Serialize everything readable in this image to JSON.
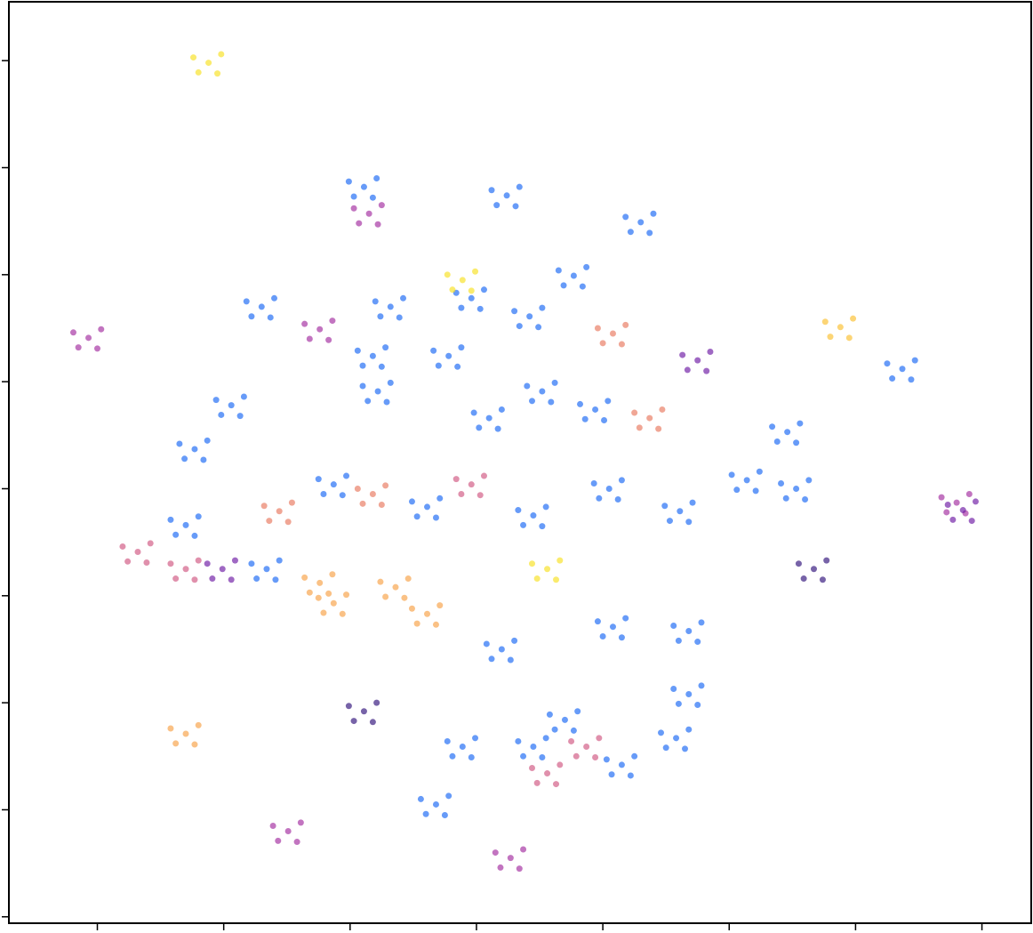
{
  "chart_data": {
    "type": "scatter",
    "xlim": [
      -0.7,
      7.39
    ],
    "ylim": [
      -0.06,
      8.55
    ],
    "xticks": [
      0,
      1,
      2,
      3,
      4,
      5,
      6,
      7
    ],
    "yticks": [
      0,
      1,
      2,
      3,
      4,
      5,
      6,
      7,
      8
    ],
    "grid": false,
    "series": [
      {
        "color": "#1565f5",
        "x": [
          2.11,
          2.21,
          1.99,
          2.18,
          2.03,
          3.24,
          3.34,
          3.12,
          3.31,
          3.16,
          4.3,
          4.4,
          4.18,
          4.37,
          4.22,
          3.77,
          3.87,
          3.65,
          3.84,
          3.69,
          1.3,
          1.4,
          1.18,
          1.37,
          1.22,
          2.18,
          2.28,
          2.06,
          2.25,
          2.1,
          2.22,
          2.32,
          2.1,
          2.29,
          2.14,
          1.06,
          1.16,
          0.94,
          1.13,
          0.98,
          0.77,
          0.87,
          0.65,
          0.84,
          0.69,
          3.42,
          3.52,
          3.3,
          3.49,
          3.34,
          2.32,
          2.42,
          2.2,
          2.39,
          2.24,
          2.96,
          3.06,
          2.84,
          3.03,
          2.88,
          3.52,
          3.62,
          3.4,
          3.59,
          3.44,
          3.94,
          4.04,
          3.82,
          4.01,
          3.86,
          3.1,
          3.2,
          2.98,
          3.17,
          3.02,
          3.45,
          3.55,
          3.33,
          3.52,
          3.37,
          1.87,
          1.97,
          1.75,
          1.94,
          1.79,
          4.05,
          4.15,
          3.93,
          4.12,
          3.97,
          6.37,
          6.47,
          6.25,
          6.44,
          6.29,
          5.46,
          5.56,
          5.34,
          5.53,
          5.38,
          5.14,
          5.24,
          5.02,
          5.21,
          5.06,
          5.53,
          5.63,
          5.41,
          5.6,
          5.45,
          4.61,
          4.71,
          4.49,
          4.68,
          4.53,
          0.7,
          0.8,
          0.58,
          0.77,
          0.62,
          1.34,
          1.44,
          1.22,
          1.41,
          1.26,
          3.2,
          3.3,
          3.08,
          3.27,
          3.12,
          4.08,
          4.18,
          3.96,
          4.15,
          4.0,
          4.68,
          4.78,
          4.56,
          4.75,
          4.6,
          4.68,
          4.78,
          4.56,
          4.75,
          4.6,
          4.58,
          4.68,
          4.46,
          4.65,
          4.5,
          4.15,
          4.25,
          4.03,
          4.22,
          4.07,
          3.7,
          3.8,
          3.58,
          3.77,
          3.62,
          3.45,
          3.55,
          3.33,
          3.52,
          3.37,
          2.89,
          2.99,
          2.77,
          2.96,
          2.81,
          2.68,
          2.78,
          2.56,
          2.75,
          2.6,
          2.78,
          2.88,
          2.66,
          2.85,
          2.7,
          2.61,
          2.71,
          2.49,
          2.68,
          2.53
        ],
        "values": [
          6.82,
          6.9,
          6.87,
          6.72,
          6.73,
          6.74,
          6.82,
          6.79,
          6.64,
          6.65,
          6.49,
          6.57,
          6.54,
          6.39,
          6.4,
          5.99,
          6.07,
          6.04,
          5.89,
          5.9,
          5.7,
          5.78,
          5.75,
          5.6,
          5.61,
          5.24,
          5.32,
          5.29,
          5.14,
          5.15,
          4.91,
          4.99,
          4.96,
          4.81,
          4.82,
          4.78,
          4.86,
          4.83,
          4.68,
          4.69,
          4.37,
          4.45,
          4.42,
          4.27,
          4.28,
          5.61,
          5.69,
          5.66,
          5.51,
          5.52,
          5.7,
          5.78,
          5.75,
          5.6,
          5.61,
          5.78,
          5.86,
          5.83,
          5.68,
          5.69,
          4.91,
          4.99,
          4.96,
          4.81,
          4.82,
          4.74,
          4.82,
          4.79,
          4.64,
          4.65,
          4.66,
          4.74,
          4.71,
          4.56,
          4.57,
          3.75,
          3.83,
          3.8,
          3.65,
          3.66,
          4.04,
          4.12,
          4.09,
          3.94,
          3.95,
          4.0,
          4.08,
          4.05,
          3.9,
          3.91,
          5.12,
          5.2,
          5.17,
          5.02,
          5.03,
          4.53,
          4.61,
          4.58,
          4.43,
          4.44,
          4.08,
          4.16,
          4.13,
          3.98,
          3.99,
          4.0,
          4.08,
          4.05,
          3.9,
          3.91,
          3.79,
          3.87,
          3.84,
          3.69,
          3.7,
          3.66,
          3.74,
          3.71,
          3.56,
          3.57,
          3.25,
          3.33,
          3.3,
          3.15,
          3.16,
          2.5,
          2.58,
          2.55,
          2.4,
          2.41,
          2.71,
          2.79,
          2.76,
          2.61,
          2.62,
          2.67,
          2.75,
          2.72,
          2.57,
          2.58,
          2.08,
          2.16,
          2.13,
          1.98,
          1.99,
          1.67,
          1.75,
          1.72,
          1.57,
          1.58,
          1.42,
          1.5,
          1.47,
          1.32,
          1.33,
          1.84,
          1.92,
          1.89,
          1.74,
          1.75,
          1.59,
          1.67,
          1.64,
          1.49,
          1.5,
          1.59,
          1.67,
          1.64,
          1.49,
          1.5,
          1.05,
          1.13,
          1.1,
          0.95,
          0.96,
          5.24,
          5.32,
          5.29,
          5.14,
          5.15,
          3.83,
          3.91,
          3.88,
          3.73,
          3.74
        ]
      },
      {
        "color": "#f7e11f",
        "x": [
          0.88,
          0.98,
          0.76,
          0.95,
          0.8,
          2.89,
          2.99,
          2.77,
          2.96,
          2.81,
          3.56,
          3.66,
          3.44,
          3.63,
          3.48
        ],
        "values": [
          7.98,
          8.06,
          8.03,
          7.88,
          7.89,
          5.95,
          6.03,
          6.0,
          5.85,
          5.86,
          3.25,
          3.33,
          3.3,
          3.15,
          3.16
        ]
      },
      {
        "color": "#fbbf2d",
        "x": [
          5.88,
          5.98,
          5.76,
          5.95,
          5.8
        ],
        "values": [
          5.51,
          5.59,
          5.56,
          5.41,
          5.42
        ]
      },
      {
        "color": "#f7a043",
        "x": [
          0.7,
          0.8,
          0.58,
          0.77,
          0.62,
          1.76,
          1.86,
          1.64,
          1.83,
          1.68,
          2.36,
          2.46,
          2.24,
          2.43,
          2.28,
          2.61,
          2.71,
          2.49,
          2.68,
          2.53,
          1.87,
          1.97,
          1.75,
          1.94,
          1.79
        ],
        "values": [
          1.71,
          1.79,
          1.76,
          1.61,
          1.62,
          3.12,
          3.2,
          3.17,
          3.02,
          3.03,
          3.08,
          3.16,
          3.13,
          2.98,
          2.99,
          2.83,
          2.91,
          2.88,
          2.73,
          2.74,
          2.93,
          3.01,
          2.98,
          2.83,
          2.84
        ]
      },
      {
        "color": "#e8765c",
        "x": [
          4.08,
          4.18,
          3.96,
          4.15,
          4.0,
          1.44,
          1.54,
          1.32,
          1.51,
          1.36,
          2.18,
          2.28,
          2.06,
          2.25,
          2.1,
          4.37,
          4.47,
          4.25,
          4.44,
          4.29
        ],
        "values": [
          5.45,
          5.53,
          5.5,
          5.35,
          5.36,
          3.79,
          3.87,
          3.84,
          3.69,
          3.7,
          3.95,
          4.03,
          4.0,
          3.85,
          3.86,
          4.66,
          4.74,
          4.71,
          4.56,
          4.57
        ]
      },
      {
        "color": "#cf5480",
        "x": [
          0.32,
          0.42,
          0.2,
          0.39,
          0.24,
          0.7,
          0.8,
          0.58,
          0.77,
          0.62,
          2.96,
          3.06,
          2.84,
          3.03,
          2.88,
          3.87,
          3.97,
          3.75,
          3.94,
          3.79,
          3.56,
          3.66,
          3.44,
          3.63,
          3.48
        ],
        "values": [
          3.41,
          3.49,
          3.46,
          3.31,
          3.32,
          3.25,
          3.33,
          3.3,
          3.15,
          3.16,
          4.04,
          4.12,
          4.09,
          3.94,
          3.95,
          1.59,
          1.67,
          1.64,
          1.49,
          1.5,
          1.34,
          1.42,
          1.39,
          1.24,
          1.25
        ]
      },
      {
        "color": "#a22a9e",
        "x": [
          -0.07,
          0.03,
          -0.19,
          0.0,
          -0.15,
          2.15,
          2.25,
          2.03,
          2.22,
          2.07,
          1.76,
          1.86,
          1.64,
          1.83,
          1.68,
          1.51,
          1.61,
          1.39,
          1.58,
          1.43,
          3.27,
          3.37,
          3.15,
          3.34,
          3.19,
          6.8,
          6.9,
          6.68,
          6.87,
          6.72
        ],
        "values": [
          5.41,
          5.49,
          5.46,
          5.31,
          5.32,
          6.57,
          6.65,
          6.62,
          6.47,
          6.48,
          5.49,
          5.57,
          5.54,
          5.39,
          5.4,
          0.8,
          0.88,
          0.85,
          0.7,
          0.71,
          0.55,
          0.63,
          0.6,
          0.45,
          0.46,
          3.87,
          3.95,
          3.92,
          3.77,
          3.78
        ]
      },
      {
        "color": "#6c17a3",
        "x": [
          4.75,
          4.85,
          4.63,
          4.82,
          4.67,
          0.99,
          1.09,
          0.87,
          1.06,
          0.91,
          6.85,
          6.95,
          6.73,
          6.92,
          6.77
        ],
        "values": [
          5.2,
          5.28,
          5.25,
          5.1,
          5.11,
          3.25,
          3.33,
          3.3,
          3.15,
          3.16,
          3.8,
          3.88,
          3.85,
          3.7,
          3.71
        ]
      },
      {
        "color": "#2e0f7a",
        "x": [
          2.11,
          2.21,
          1.99,
          2.18,
          2.03,
          5.67,
          5.77,
          5.55,
          5.74,
          5.59
        ],
        "values": [
          1.92,
          2.0,
          1.97,
          1.82,
          1.83,
          3.25,
          3.33,
          3.3,
          3.15,
          3.16
        ]
      }
    ]
  }
}
